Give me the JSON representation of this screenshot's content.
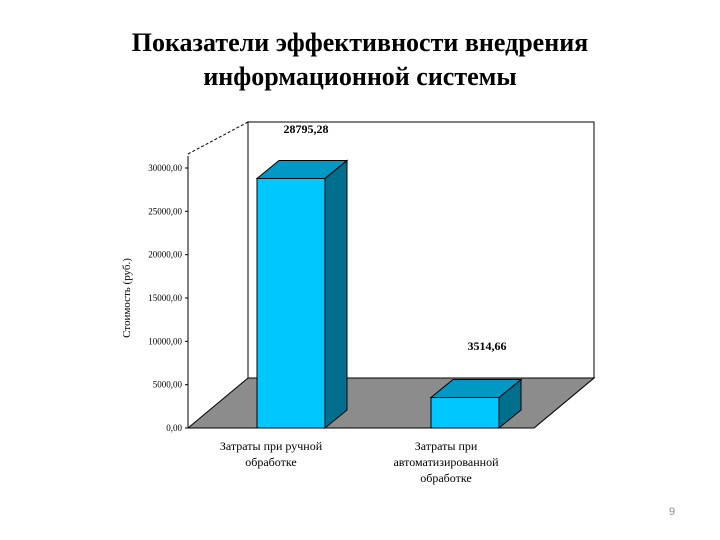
{
  "slide": {
    "title_line1": "Показатели эффективности внедрения",
    "title_line2": "информационной системы",
    "page_number": "9"
  },
  "chart_data": {
    "type": "bar",
    "title": "",
    "ylabel": "Стоимость (руб.)",
    "xlabel": "",
    "categories": [
      [
        "Затраты при ручной",
        "обработке"
      ],
      [
        "Затраты при",
        "автоматизированной",
        "обработке"
      ]
    ],
    "series": [
      {
        "values": [
          28795.28,
          3514.66
        ]
      }
    ],
    "data_labels": [
      "28795,28",
      "3514,66"
    ],
    "yticks": [
      "0,00",
      "5000,00",
      "10000,00",
      "15000,00",
      "20000,00",
      "25000,00",
      "30000,00"
    ],
    "ylim": [
      0,
      30000
    ],
    "three_d": true,
    "grid": false,
    "legend": "none",
    "colors": {
      "bar_front": "#00c8ff",
      "bar_side": "#006f8e",
      "bar_top": "#0099c6",
      "floor": "#8c8c8c",
      "frame": "#000000"
    }
  }
}
